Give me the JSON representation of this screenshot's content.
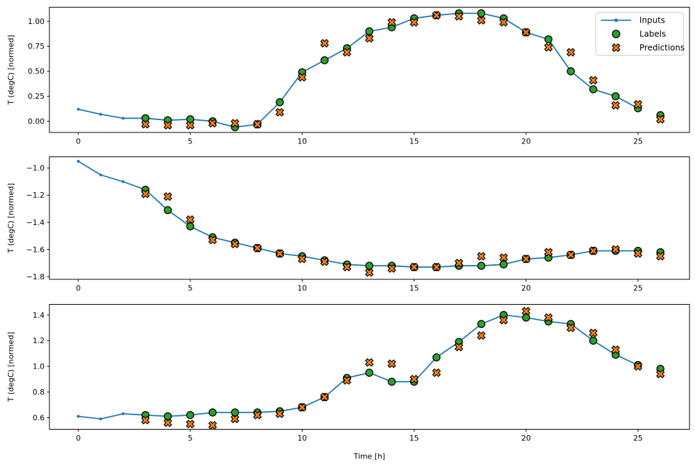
{
  "figure": {
    "background": "#ffffff",
    "description": "Three stacked time-series subplots comparing model inputs, labels and predictions"
  },
  "colors": {
    "inputs": "#1f77b4",
    "labels": "#2ca02c",
    "predictions": "#ff7f0e",
    "marker_edge": "#000000",
    "axis_frame": "#000000",
    "text": "#000000",
    "legend_border": "#cccccc",
    "legend_background": "rgba(255,255,255,0.8)"
  },
  "xlabel": "Time [h]",
  "ylabel": "T (degC) [normed]",
  "legend": {
    "position": "upper-right",
    "items": [
      {
        "label": "Inputs",
        "marker": "line-dot",
        "color": "#1f77b4"
      },
      {
        "label": "Labels",
        "marker": "circle",
        "color": "#2ca02c"
      },
      {
        "label": "Predictions",
        "marker": "x",
        "color": "#ff7f0e"
      }
    ]
  },
  "chart_data": [
    {
      "type": "line",
      "ylabel": "T (degC) [normed]",
      "xlabel": "",
      "show_legend": true,
      "grid": false,
      "xlim": [
        -1.29,
        27.3
      ],
      "ylim": [
        -0.112,
        1.141
      ],
      "xticks": [
        0,
        5,
        10,
        15,
        20,
        25
      ],
      "xtick_labels": [
        "0",
        "5",
        "10",
        "15",
        "20",
        "25"
      ],
      "yticks": [
        0.0,
        0.25,
        0.5,
        0.75,
        1.0
      ],
      "ytick_labels": [
        "0.00",
        "0.25",
        "0.50",
        "0.75",
        "1.00"
      ],
      "series": [
        {
          "name": "Inputs",
          "type": "line-dot",
          "color": "#1f77b4",
          "x": [
            0,
            1,
            2,
            3,
            4,
            5,
            6,
            7,
            8,
            9,
            10,
            11,
            12,
            13,
            14,
            15,
            16,
            17,
            18,
            19,
            20,
            21,
            22,
            23,
            24,
            25
          ],
          "y": [
            0.12,
            0.07,
            0.03,
            0.03,
            0.01,
            0.02,
            0.0,
            -0.06,
            -0.03,
            0.19,
            0.49,
            0.61,
            0.73,
            0.9,
            0.94,
            1.03,
            1.06,
            1.08,
            1.08,
            1.03,
            0.89,
            0.82,
            0.5,
            0.32,
            0.25,
            0.13
          ]
        },
        {
          "name": "Labels",
          "type": "scatter-circle",
          "color": "#2ca02c",
          "edge_color": "#000000",
          "x": [
            3,
            4,
            5,
            6,
            7,
            8,
            9,
            10,
            11,
            12,
            13,
            14,
            15,
            16,
            17,
            18,
            19,
            20,
            21,
            22,
            23,
            24,
            25,
            26
          ],
          "y": [
            0.03,
            0.01,
            0.02,
            0.0,
            -0.06,
            -0.03,
            0.19,
            0.49,
            0.61,
            0.73,
            0.9,
            0.94,
            1.03,
            1.06,
            1.08,
            1.08,
            1.03,
            0.89,
            0.82,
            0.5,
            0.32,
            0.25,
            0.13,
            0.06
          ]
        },
        {
          "name": "Predictions",
          "type": "scatter-x",
          "color": "#ff7f0e",
          "edge_color": "#000000",
          "x": [
            3,
            4,
            5,
            6,
            7,
            8,
            9,
            10,
            11,
            12,
            13,
            14,
            15,
            16,
            17,
            18,
            19,
            20,
            21,
            22,
            23,
            24,
            25,
            26
          ],
          "y": [
            -0.03,
            -0.04,
            -0.04,
            -0.02,
            -0.02,
            -0.03,
            0.09,
            0.44,
            0.78,
            0.69,
            0.83,
            0.99,
            0.99,
            1.06,
            1.05,
            1.01,
            0.99,
            0.89,
            0.74,
            0.69,
            0.41,
            0.16,
            0.17,
            0.02
          ]
        }
      ]
    },
    {
      "type": "line",
      "ylabel": "T (degC) [normed]",
      "xlabel": "",
      "show_legend": false,
      "grid": false,
      "xlim": [
        -1.29,
        27.3
      ],
      "ylim": [
        -1.82,
        -0.917
      ],
      "xticks": [
        0,
        5,
        10,
        15,
        20,
        25
      ],
      "xtick_labels": [
        "0",
        "5",
        "10",
        "15",
        "20",
        "25"
      ],
      "yticks": [
        -1.0,
        -1.2,
        -1.4,
        -1.6,
        -1.8
      ],
      "ytick_labels": [
        "−1.0",
        "−1.2",
        "−1.4",
        "−1.6",
        "−1.8"
      ],
      "series": [
        {
          "name": "Inputs",
          "type": "line-dot",
          "color": "#1f77b4",
          "x": [
            0,
            1,
            2,
            3,
            4,
            5,
            6,
            7,
            8,
            9,
            10,
            11,
            12,
            13,
            14,
            15,
            16,
            17,
            18,
            19,
            20,
            21,
            22,
            23,
            24,
            25
          ],
          "y": [
            -0.95,
            -1.05,
            -1.1,
            -1.16,
            -1.31,
            -1.43,
            -1.51,
            -1.55,
            -1.59,
            -1.63,
            -1.65,
            -1.68,
            -1.71,
            -1.72,
            -1.72,
            -1.73,
            -1.73,
            -1.72,
            -1.72,
            -1.71,
            -1.67,
            -1.66,
            -1.64,
            -1.61,
            -1.61,
            -1.61
          ]
        },
        {
          "name": "Labels",
          "type": "scatter-circle",
          "color": "#2ca02c",
          "edge_color": "#000000",
          "x": [
            3,
            4,
            5,
            6,
            7,
            8,
            9,
            10,
            11,
            12,
            13,
            14,
            15,
            16,
            17,
            18,
            19,
            20,
            21,
            22,
            23,
            24,
            25,
            26
          ],
          "y": [
            -1.16,
            -1.31,
            -1.43,
            -1.51,
            -1.55,
            -1.59,
            -1.63,
            -1.65,
            -1.68,
            -1.71,
            -1.72,
            -1.72,
            -1.73,
            -1.73,
            -1.72,
            -1.72,
            -1.71,
            -1.67,
            -1.66,
            -1.64,
            -1.61,
            -1.61,
            -1.61,
            -1.62
          ]
        },
        {
          "name": "Predictions",
          "type": "scatter-x",
          "color": "#ff7f0e",
          "edge_color": "#000000",
          "x": [
            3,
            4,
            5,
            6,
            7,
            8,
            9,
            10,
            11,
            12,
            13,
            14,
            15,
            16,
            17,
            18,
            19,
            20,
            21,
            22,
            23,
            24,
            25,
            26
          ],
          "y": [
            -1.19,
            -1.21,
            -1.38,
            -1.53,
            -1.56,
            -1.59,
            -1.63,
            -1.67,
            -1.69,
            -1.73,
            -1.77,
            -1.74,
            -1.73,
            -1.73,
            -1.7,
            -1.65,
            -1.66,
            -1.67,
            -1.62,
            -1.64,
            -1.61,
            -1.6,
            -1.63,
            -1.65
          ]
        }
      ]
    },
    {
      "type": "line",
      "ylabel": "T (degC) [normed]",
      "xlabel": "Time [h]",
      "show_legend": false,
      "grid": false,
      "xlim": [
        -1.29,
        27.3
      ],
      "ylim": [
        0.509,
        1.483
      ],
      "xticks": [
        0,
        5,
        10,
        15,
        20,
        25
      ],
      "xtick_labels": [
        "0",
        "5",
        "10",
        "15",
        "20",
        "25"
      ],
      "yticks": [
        0.6,
        0.8,
        1.0,
        1.2,
        1.4
      ],
      "ytick_labels": [
        "0.6",
        "0.8",
        "1.0",
        "1.2",
        "1.4"
      ],
      "series": [
        {
          "name": "Inputs",
          "type": "line-dot",
          "color": "#1f77b4",
          "x": [
            0,
            1,
            2,
            3,
            4,
            5,
            6,
            7,
            8,
            9,
            10,
            11,
            12,
            13,
            14,
            15,
            16,
            17,
            18,
            19,
            20,
            21,
            22,
            23,
            24,
            25
          ],
          "y": [
            0.61,
            0.59,
            0.63,
            0.62,
            0.61,
            0.62,
            0.64,
            0.64,
            0.64,
            0.65,
            0.68,
            0.76,
            0.91,
            0.95,
            0.88,
            0.88,
            1.07,
            1.19,
            1.33,
            1.4,
            1.38,
            1.35,
            1.33,
            1.2,
            1.09,
            1.01
          ]
        },
        {
          "name": "Labels",
          "type": "scatter-circle",
          "color": "#2ca02c",
          "edge_color": "#000000",
          "x": [
            3,
            4,
            5,
            6,
            7,
            8,
            9,
            10,
            11,
            12,
            13,
            14,
            15,
            16,
            17,
            18,
            19,
            20,
            21,
            22,
            23,
            24,
            25,
            26
          ],
          "y": [
            0.62,
            0.61,
            0.62,
            0.64,
            0.64,
            0.64,
            0.65,
            0.68,
            0.76,
            0.91,
            0.95,
            0.88,
            0.88,
            1.07,
            1.19,
            1.33,
            1.4,
            1.38,
            1.35,
            1.33,
            1.2,
            1.09,
            1.01,
            0.98
          ]
        },
        {
          "name": "Predictions",
          "type": "scatter-x",
          "color": "#ff7f0e",
          "edge_color": "#000000",
          "x": [
            3,
            4,
            5,
            6,
            7,
            8,
            9,
            10,
            11,
            12,
            13,
            14,
            15,
            16,
            17,
            18,
            19,
            20,
            21,
            22,
            23,
            24,
            25,
            26
          ],
          "y": [
            0.58,
            0.56,
            0.55,
            0.54,
            0.59,
            0.62,
            0.63,
            0.68,
            0.76,
            0.89,
            1.03,
            1.02,
            0.9,
            0.95,
            1.15,
            1.24,
            1.36,
            1.43,
            1.38,
            1.3,
            1.26,
            1.13,
            1.0,
            0.94
          ]
        }
      ]
    }
  ]
}
